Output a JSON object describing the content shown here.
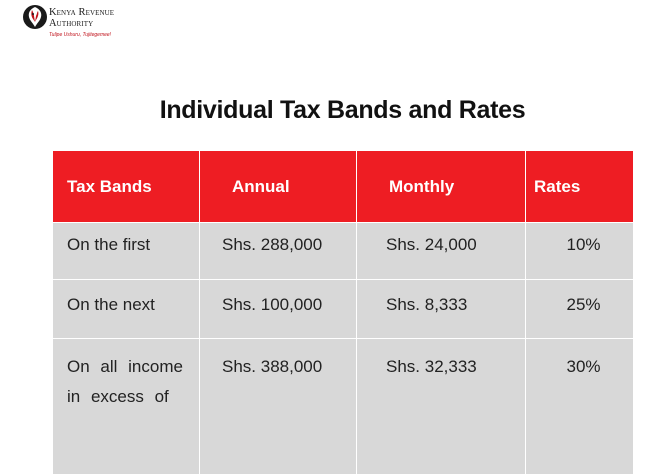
{
  "header": {
    "org_name_line1": "Kenya Revenue",
    "org_name_line2": "Authority",
    "tagline": "Tulipe Ushuru, Tujitegemee!",
    "brand_colors": {
      "red": "#c0121b",
      "black": "#1a1a1a"
    },
    "logo_icon": "lion-head-icon"
  },
  "page": {
    "title": "Individual Tax Bands and Rates"
  },
  "table": {
    "header_color": "#ee1d23",
    "row_color": "#d8d8d8",
    "columns": [
      "Tax Bands",
      "Annual",
      "Monthly",
      "Rates"
    ],
    "rows": [
      {
        "band": "On the first",
        "annual": "Shs. 288,000",
        "monthly": "Shs. 24,000",
        "rate": "10%"
      },
      {
        "band": "On the next",
        "annual": "Shs. 100,000",
        "monthly": "Shs. 8,333",
        "rate": "25%"
      },
      {
        "band": "On all income in excess of",
        "annual": "Shs. 388,000",
        "monthly": "Shs. 32,333",
        "rate": "30%"
      }
    ]
  }
}
